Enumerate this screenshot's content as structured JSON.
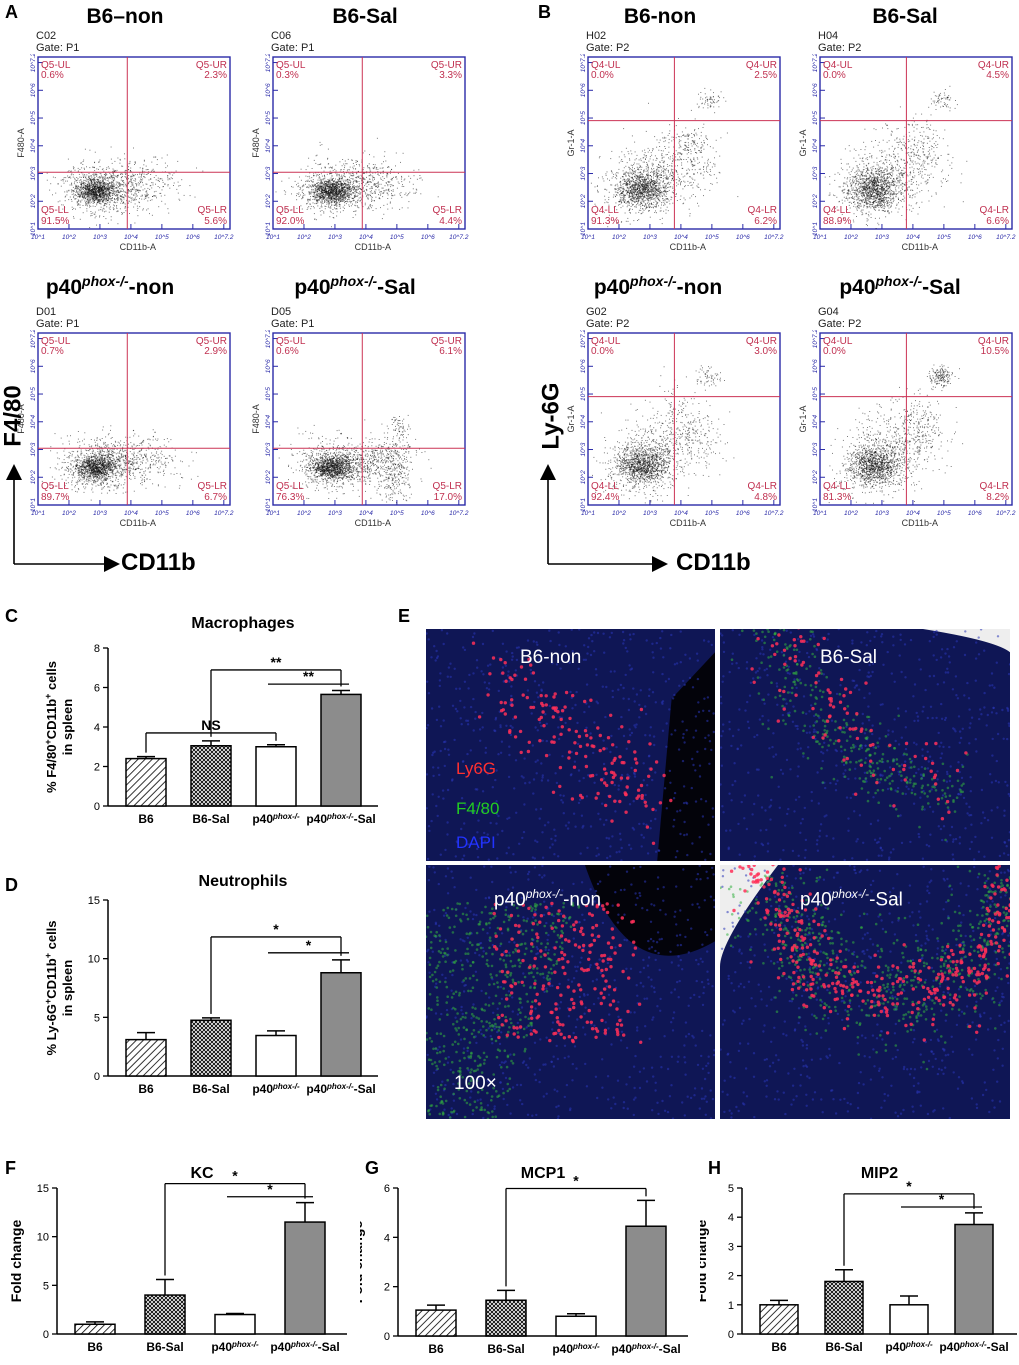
{
  "panel_labels": {
    "A": "A",
    "B": "B",
    "C": "C",
    "D": "D",
    "E": "E",
    "F": "F",
    "G": "G",
    "H": "H"
  },
  "flow": {
    "panels": [
      {
        "id": "A1",
        "title": "B6–non",
        "sample": "C02",
        "gate": "Gate: P1",
        "prefix": "Q5",
        "ylabel": "F480-A",
        "xlabel": "CD11b-A",
        "UL": "0.6%",
        "UR": "2.3%",
        "LL": "91.5%",
        "LR": "5.6%",
        "pattern": "F"
      },
      {
        "id": "A2",
        "title": "B6-Sal",
        "sample": "C06",
        "gate": "Gate: P1",
        "prefix": "Q5",
        "ylabel": "F480-A",
        "xlabel": "CD11b-A",
        "UL": "0.3%",
        "UR": "3.3%",
        "LL": "92.0%",
        "LR": "4.4%",
        "pattern": "F"
      },
      {
        "id": "A3",
        "title_pre": "p40",
        "title_sup": "phox-/-",
        "title_post": "-non",
        "sample": "D01",
        "gate": "Gate: P1",
        "prefix": "Q5",
        "ylabel": "F480-A",
        "xlabel": "CD11b-A",
        "UL": "0.7%",
        "UR": "2.9%",
        "LL": "89.7%",
        "LR": "6.7%",
        "pattern": "F"
      },
      {
        "id": "A4",
        "title_pre": "p40",
        "title_sup": "phox-/-",
        "title_post": "-Sal",
        "sample": "D05",
        "gate": "Gate: P1",
        "prefix": "Q5",
        "ylabel": "F480-A",
        "xlabel": "CD11b-A",
        "UL": "0.6%",
        "UR": "6.1%",
        "LL": "76.3%",
        "LR": "17.0%",
        "pattern": "F2"
      },
      {
        "id": "B1",
        "title": "B6-non",
        "sample": "H02",
        "gate": "Gate: P2",
        "prefix": "Q4",
        "ylabel": "Gr-1-A",
        "xlabel": "CD11b-A",
        "UL": "0.0%",
        "UR": "2.5%",
        "LL": "91.3%",
        "LR": "6.2%",
        "pattern": "L"
      },
      {
        "id": "B2",
        "title": "B6-Sal",
        "sample": "H04",
        "gate": "Gate: P2",
        "prefix": "Q4",
        "ylabel": "Gr-1-A",
        "xlabel": "CD11b-A",
        "UL": "0.0%",
        "UR": "4.5%",
        "LL": "88.9%",
        "LR": "6.6%",
        "pattern": "L"
      },
      {
        "id": "B3",
        "title_pre": "p40",
        "title_sup": "phox-/-",
        "title_post": "-non",
        "sample": "G02",
        "gate": "Gate: P2",
        "prefix": "Q4",
        "ylabel": "Gr-1-A",
        "xlabel": "CD11b-A",
        "UL": "0.0%",
        "UR": "3.0%",
        "LL": "92.4%",
        "LR": "4.8%",
        "pattern": "L"
      },
      {
        "id": "B4",
        "title_pre": "p40",
        "title_sup": "phox-/-",
        "title_post": "-Sal",
        "sample": "G04",
        "gate": "Gate: P2",
        "prefix": "Q4",
        "ylabel": "Gr-1-A",
        "xlabel": "CD11b-A",
        "UL": "0.0%",
        "UR": "10.5%",
        "LL": "81.3%",
        "LR": "8.2%",
        "pattern": "L2"
      }
    ],
    "ticks": [
      "10^1",
      "10^2",
      "10^3",
      "10^4",
      "10^5",
      "10^6",
      "10^7.2"
    ],
    "axis_A": {
      "y": "F4/80",
      "x": "CD11b"
    },
    "axis_B": {
      "y": "Ly-6G",
      "x": "CD11b"
    }
  },
  "microscopy": {
    "cells": [
      {
        "label": "B6-non"
      },
      {
        "label": "B6-Sal"
      },
      {
        "label_pre": "p40",
        "label_sup": "phox-/-",
        "label_post": "-non"
      },
      {
        "label_pre": "p40",
        "label_sup": "phox-/-",
        "label_post": "-Sal"
      }
    ],
    "legend": [
      {
        "text": "Ly6G",
        "color": "#ff3030"
      },
      {
        "text": "F4/80",
        "color": "#22cc22"
      },
      {
        "text": "DAPI",
        "color": "#2233ff"
      }
    ],
    "magnification": "100×"
  },
  "chart_data": [
    {
      "id": "C",
      "type": "bar",
      "title": "Macrophages",
      "ylabel_pre": "% F4/80",
      "ylabel_sup1": "+",
      "ylabel_mid": "CD11b",
      "ylabel_sup2": "+",
      "ylabel_post": " cells",
      "ylabel_line2": "in spleen",
      "categories": [
        "B6",
        "B6-Sal",
        "p40phox-/-",
        "p40phox-/--Sal"
      ],
      "values": [
        2.4,
        3.05,
        3.0,
        5.65
      ],
      "errors": [
        0.1,
        0.25,
        0.1,
        0.2
      ],
      "ylim": [
        0,
        8
      ],
      "yticks": [
        0,
        2,
        4,
        6,
        8
      ],
      "annotations": [
        {
          "text": "NS",
          "from": 0,
          "to": 2
        },
        {
          "text": "**",
          "from": 1,
          "to": 3
        },
        {
          "text": "**",
          "from": 2,
          "to": 3
        }
      ]
    },
    {
      "id": "D",
      "type": "bar",
      "title": "Neutrophils",
      "ylabel_pre": "% Ly-6G",
      "ylabel_sup1": "+",
      "ylabel_mid": "CD11b",
      "ylabel_sup2": "+",
      "ylabel_post": " cells",
      "ylabel_line2": "in spleen",
      "categories": [
        "B6",
        "B6-Sal",
        "p40phox-/-",
        "p40phox-/--Sal"
      ],
      "values": [
        3.1,
        4.75,
        3.45,
        8.8
      ],
      "errors": [
        0.6,
        0.2,
        0.4,
        1.1
      ],
      "ylim": [
        0,
        15
      ],
      "yticks": [
        0,
        5,
        10,
        15
      ],
      "annotations": [
        {
          "text": "*",
          "from": 1,
          "to": 3
        },
        {
          "text": "*",
          "from": 2,
          "to": 3
        }
      ]
    },
    {
      "id": "F",
      "type": "bar",
      "title": "KC",
      "ylabel": "Fold change",
      "categories": [
        "B6",
        "B6-Sal",
        "p40phox-/-",
        "p40phox-/--Sal"
      ],
      "values": [
        1.0,
        4.0,
        2.0,
        11.5
      ],
      "errors": [
        0.25,
        1.6,
        0.1,
        2.0
      ],
      "ylim": [
        0,
        15
      ],
      "yticks": [
        0,
        5,
        10,
        15
      ],
      "annotations": [
        {
          "text": "*",
          "from": 1,
          "to": 3
        },
        {
          "text": "*",
          "from": 2,
          "to": 3
        }
      ]
    },
    {
      "id": "G",
      "type": "bar",
      "title": "MCP1",
      "ylabel": "Fold change",
      "categories": [
        "B6",
        "B6-Sal",
        "p40phox-/-",
        "p40phox-/--Sal"
      ],
      "values": [
        1.05,
        1.45,
        0.8,
        4.45
      ],
      "errors": [
        0.2,
        0.4,
        0.1,
        1.05
      ],
      "ylim": [
        0,
        6
      ],
      "yticks": [
        0,
        2,
        4,
        6
      ],
      "annotations": [
        {
          "text": "*",
          "from": 1,
          "to": 3
        }
      ]
    },
    {
      "id": "H",
      "type": "bar",
      "title": "MIP2",
      "ylabel": "Fold change",
      "categories": [
        "B6",
        "B6-Sal",
        "p40phox-/-",
        "p40phox-/--Sal"
      ],
      "values": [
        1.0,
        1.8,
        1.0,
        3.75
      ],
      "errors": [
        0.15,
        0.4,
        0.3,
        0.4
      ],
      "ylim": [
        0,
        5
      ],
      "yticks": [
        0,
        1,
        2,
        3,
        4,
        5
      ],
      "annotations": [
        {
          "text": "*",
          "from": 1,
          "to": 3
        },
        {
          "text": "*",
          "from": 2,
          "to": 3
        }
      ]
    }
  ]
}
